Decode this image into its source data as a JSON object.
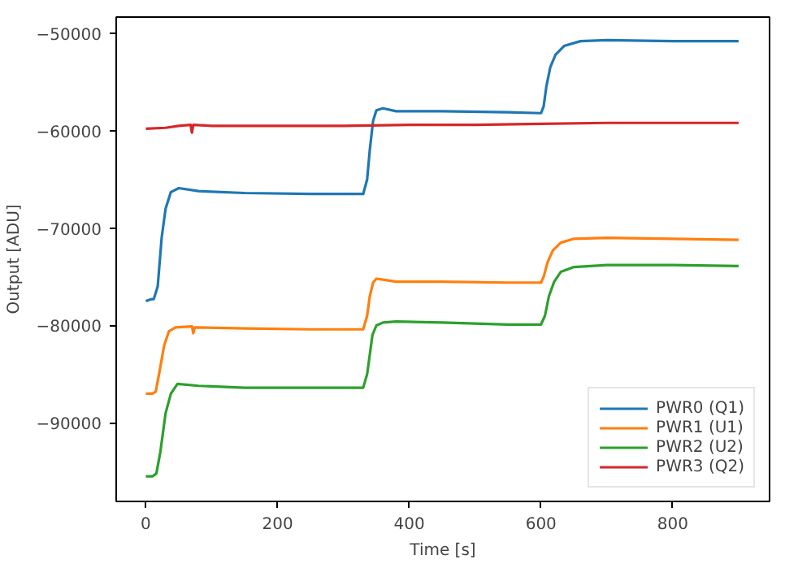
{
  "chart_data": {
    "type": "line",
    "xlabel": "Time [s]",
    "ylabel": "Output [ADU]",
    "xlim": [
      -45,
      947
    ],
    "ylim": [
      -98070,
      -48330
    ],
    "xticks": [
      0,
      200,
      400,
      600,
      800
    ],
    "yticks": [
      {
        "value": -90000,
        "label": "−90000"
      },
      {
        "value": -80000,
        "label": "−80000"
      },
      {
        "value": -70000,
        "label": "−70000"
      },
      {
        "value": -60000,
        "label": "−60000"
      },
      {
        "value": -50000,
        "label": "−50000"
      }
    ],
    "grid": false,
    "legend": "bottom right",
    "line_style": "solid",
    "marker": "none",
    "series": [
      {
        "name": "PWR0 (Q1)",
        "color": "#1f77b4",
        "x": [
          0,
          8,
          12,
          18,
          24,
          30,
          38,
          50,
          80,
          150,
          250,
          330,
          336,
          340,
          345,
          350,
          360,
          380,
          450,
          550,
          600,
          604,
          608,
          614,
          622,
          635,
          660,
          700,
          800,
          900
        ],
        "values": [
          -77500,
          -77300,
          -77300,
          -76000,
          -71000,
          -68000,
          -66300,
          -65900,
          -66200,
          -66400,
          -66500,
          -66500,
          -65000,
          -62000,
          -59000,
          -57900,
          -57700,
          -58000,
          -58000,
          -58100,
          -58200,
          -57500,
          -55500,
          -53500,
          -52200,
          -51300,
          -50800,
          -50700,
          -50800,
          -50800
        ]
      },
      {
        "name": "PWR1 (U1)",
        "color": "#ff7f0e",
        "x": [
          0,
          10,
          15,
          20,
          28,
          35,
          45,
          70,
          72,
          74,
          150,
          250,
          330,
          336,
          340,
          345,
          350,
          360,
          380,
          450,
          550,
          600,
          604,
          610,
          618,
          630,
          650,
          700,
          800,
          900
        ],
        "values": [
          -87000,
          -87000,
          -86800,
          -85000,
          -82000,
          -80600,
          -80200,
          -80100,
          -80800,
          -80200,
          -80300,
          -80400,
          -80400,
          -79000,
          -77000,
          -75600,
          -75200,
          -75300,
          -75500,
          -75500,
          -75600,
          -75600,
          -75000,
          -73500,
          -72300,
          -71500,
          -71100,
          -71000,
          -71100,
          -71200
        ]
      },
      {
        "name": "PWR2 (U2)",
        "color": "#2ca02c",
        "x": [
          0,
          10,
          16,
          22,
          30,
          38,
          48,
          80,
          150,
          250,
          330,
          336,
          340,
          344,
          350,
          360,
          380,
          450,
          550,
          600,
          606,
          612,
          620,
          630,
          650,
          700,
          800,
          900
        ],
        "values": [
          -95500,
          -95500,
          -95200,
          -93000,
          -89000,
          -87000,
          -86000,
          -86200,
          -86400,
          -86400,
          -86400,
          -85000,
          -83000,
          -81000,
          -80000,
          -79700,
          -79600,
          -79700,
          -79900,
          -79900,
          -79000,
          -77000,
          -75500,
          -74500,
          -74000,
          -73800,
          -73800,
          -73900
        ]
      },
      {
        "name": "PWR3 (Q2)",
        "color": "#d62728",
        "x": [
          0,
          30,
          50,
          68,
          70,
          72,
          100,
          200,
          300,
          400,
          500,
          600,
          700,
          800,
          900
        ],
        "values": [
          -59800,
          -59700,
          -59500,
          -59400,
          -60200,
          -59400,
          -59500,
          -59500,
          -59500,
          -59400,
          -59400,
          -59300,
          -59200,
          -59200,
          -59200
        ]
      }
    ]
  }
}
